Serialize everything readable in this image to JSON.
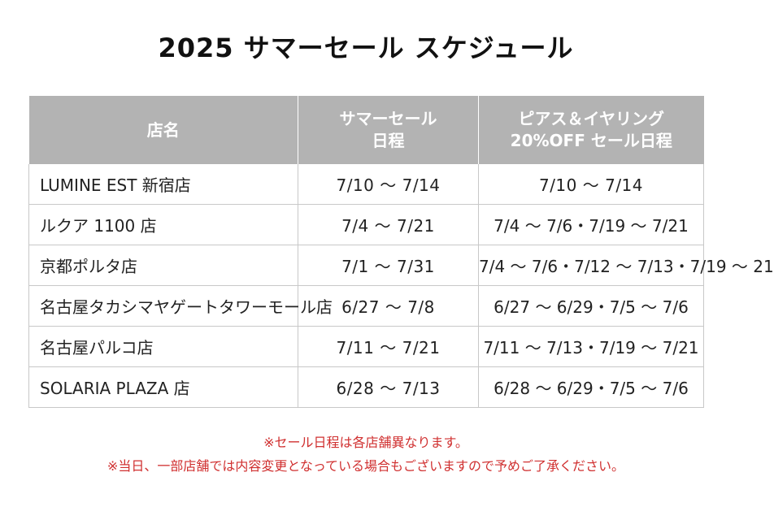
{
  "title": "2025 サマーセール スケジュール",
  "table": {
    "headers": {
      "store": "店名",
      "summer_line1": "サマーセール",
      "summer_line2": "日程",
      "pierce_line1": "ピアス＆イヤリング",
      "pierce_line2": "20%OFF セール日程"
    },
    "rows": [
      {
        "store": "LUMINE EST 新宿店",
        "summer": "7/10 ～ 7/14",
        "pierce": "7/10 ～ 7/14"
      },
      {
        "store": "ルクア 1100 店",
        "summer": "7/4 ～ 7/21",
        "pierce": "7/4 ～ 7/6・7/19 ～ 7/21"
      },
      {
        "store": "京都ポルタ店",
        "summer": "7/1 ～ 7/31",
        "pierce": "7/4 ～ 7/6・7/12 ～ 7/13・7/19 ～ 21"
      },
      {
        "store": "名古屋タカシマヤゲートタワーモール店",
        "summer": "6/27 ～ 7/8",
        "pierce": "6/27 ～ 6/29・7/5 ～ 7/6"
      },
      {
        "store": "名古屋パルコ店",
        "summer": "7/11 ～ 7/21",
        "pierce": "7/11 ～ 7/13・7/19 ～ 7/21"
      },
      {
        "store": "SOLARIA PLAZA 店",
        "summer": "6/28 ～ 7/13",
        "pierce": "6/28 ～ 6/29・7/5 ～ 7/6"
      }
    ]
  },
  "notes": {
    "line1": "※セール日程は各店舗異なります。",
    "line2": "※当日、一部店舗では内容変更となっている場合もございますので予めご了承ください。"
  },
  "colors": {
    "header_bg": "#b3b3b3",
    "note_text": "#d03030"
  }
}
